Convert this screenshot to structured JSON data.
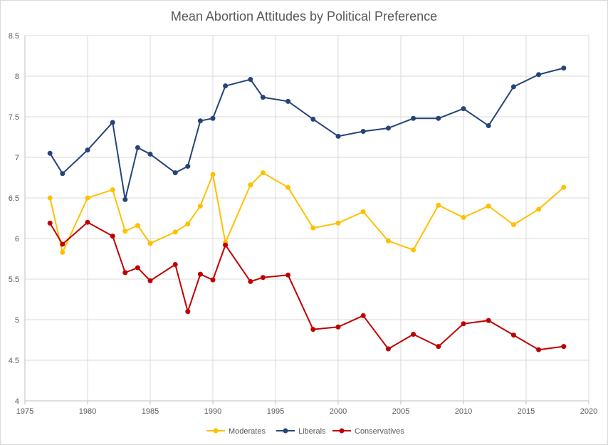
{
  "chart_data": {
    "type": "line",
    "title": "Mean Abortion Attitudes by Political Preference",
    "xlabel": "",
    "ylabel": "",
    "xlim": [
      1975,
      2020
    ],
    "ylim": [
      4,
      8.5
    ],
    "x_ticks": [
      1975,
      1980,
      1985,
      1990,
      1995,
      2000,
      2005,
      2010,
      2015,
      2020
    ],
    "x_tick_labels": [
      "1975",
      "1980",
      "1985",
      "1990",
      "1995",
      "2000",
      "2005",
      "2010",
      "2015",
      "2020"
    ],
    "y_ticks": [
      4,
      4.5,
      5,
      5.5,
      6,
      6.5,
      7,
      7.5,
      8,
      8.5
    ],
    "y_tick_labels": [
      "4",
      "4.5",
      "5",
      "5.5",
      "6",
      "6.5",
      "7",
      "7.5",
      "8",
      "8.5"
    ],
    "grid": true,
    "legend_position": "bottom",
    "series": [
      {
        "name": "Moderates",
        "color": "#FFC000",
        "points": [
          [
            1977,
            6.5
          ],
          [
            1978,
            5.83
          ],
          [
            1980,
            6.5
          ],
          [
            1982,
            6.6
          ],
          [
            1983,
            6.09
          ],
          [
            1984,
            6.16
          ],
          [
            1985,
            5.94
          ],
          [
            1987,
            6.08
          ],
          [
            1988,
            6.18
          ],
          [
            1989,
            6.4
          ],
          [
            1990,
            6.79
          ],
          [
            1991,
            5.95
          ],
          [
            1993,
            6.66
          ],
          [
            1994,
            6.81
          ],
          [
            1996,
            6.63
          ],
          [
            1998,
            6.13
          ],
          [
            2000,
            6.19
          ],
          [
            2002,
            6.33
          ],
          [
            2004,
            5.97
          ],
          [
            2006,
            5.86
          ],
          [
            2008,
            6.41
          ],
          [
            2010,
            6.26
          ],
          [
            2012,
            6.4
          ],
          [
            2014,
            6.17
          ],
          [
            2016,
            6.36
          ],
          [
            2018,
            6.63
          ]
        ]
      },
      {
        "name": "Liberals",
        "color": "#264478",
        "points": [
          [
            1977,
            7.05
          ],
          [
            1978,
            6.8
          ],
          [
            1980,
            7.09
          ],
          [
            1982,
            7.43
          ],
          [
            1983,
            6.48
          ],
          [
            1984,
            7.12
          ],
          [
            1985,
            7.04
          ],
          [
            1987,
            6.81
          ],
          [
            1988,
            6.89
          ],
          [
            1989,
            7.45
          ],
          [
            1990,
            7.48
          ],
          [
            1991,
            7.88
          ],
          [
            1993,
            7.96
          ],
          [
            1994,
            7.74
          ],
          [
            1996,
            7.69
          ],
          [
            1998,
            7.47
          ],
          [
            2000,
            7.26
          ],
          [
            2002,
            7.32
          ],
          [
            2004,
            7.36
          ],
          [
            2006,
            7.48
          ],
          [
            2008,
            7.48
          ],
          [
            2010,
            7.6
          ],
          [
            2012,
            7.39
          ],
          [
            2014,
            7.87
          ],
          [
            2016,
            8.02
          ],
          [
            2018,
            8.1
          ]
        ]
      },
      {
        "name": "Conservatives",
        "color": "#C00000",
        "points": [
          [
            1977,
            6.19
          ],
          [
            1978,
            5.93
          ],
          [
            1980,
            6.2
          ],
          [
            1982,
            6.03
          ],
          [
            1983,
            5.58
          ],
          [
            1984,
            5.64
          ],
          [
            1985,
            5.48
          ],
          [
            1987,
            5.68
          ],
          [
            1988,
            5.1
          ],
          [
            1989,
            5.56
          ],
          [
            1990,
            5.49
          ],
          [
            1991,
            5.92
          ],
          [
            1993,
            5.47
          ],
          [
            1994,
            5.52
          ],
          [
            1996,
            5.55
          ],
          [
            1998,
            4.88
          ],
          [
            2000,
            4.91
          ],
          [
            2002,
            5.05
          ],
          [
            2004,
            4.64
          ],
          [
            2006,
            4.82
          ],
          [
            2008,
            4.67
          ],
          [
            2010,
            4.95
          ],
          [
            2012,
            4.99
          ],
          [
            2014,
            4.81
          ],
          [
            2016,
            4.63
          ],
          [
            2018,
            4.67
          ]
        ]
      }
    ]
  }
}
